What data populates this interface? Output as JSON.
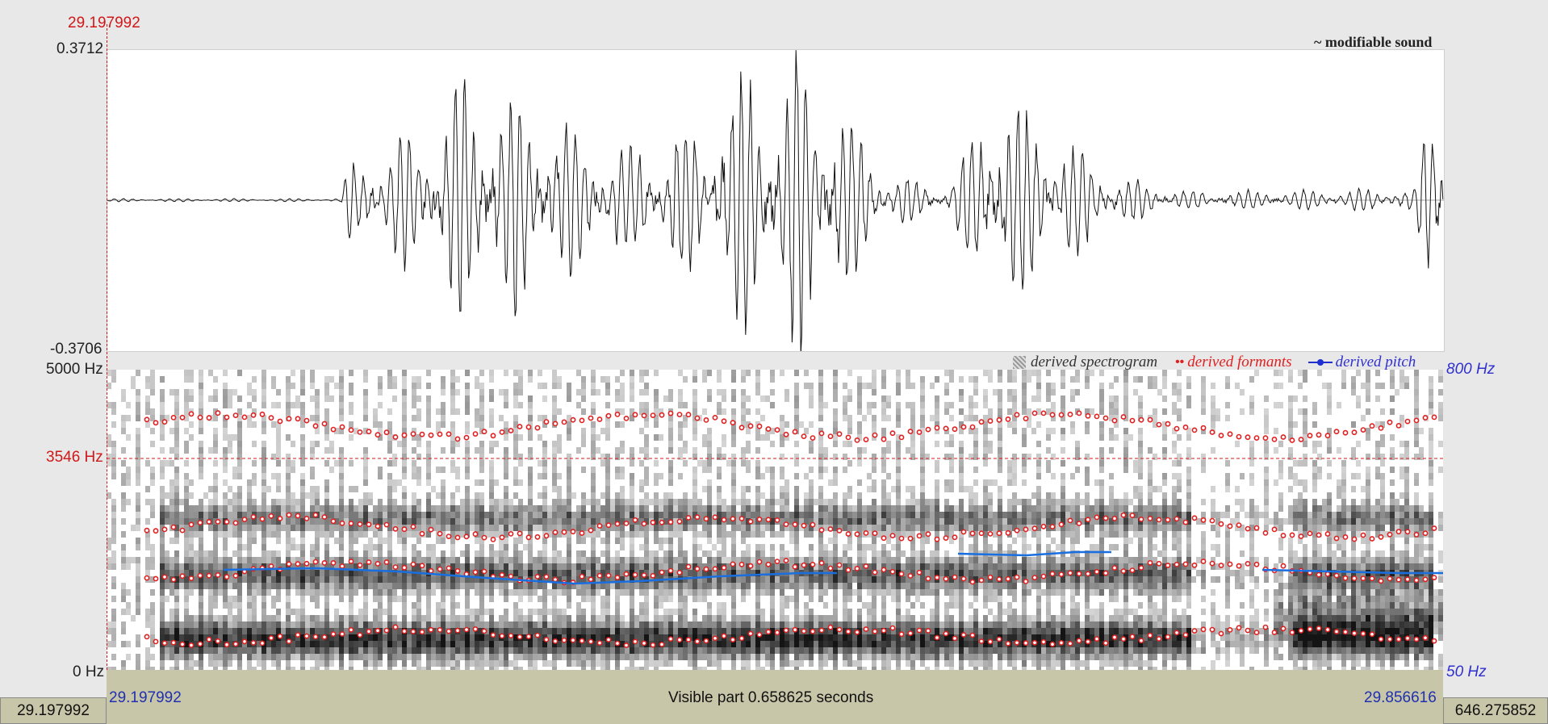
{
  "cursor": {
    "time_label": "29.197992"
  },
  "waveform": {
    "title": "~ modifiable sound",
    "y_max_label": "0.3712",
    "y_min_label": "-0.3706"
  },
  "spectrogram": {
    "freq_top_label": "5000 Hz",
    "freq_cursor_label": "3546 Hz",
    "freq_bottom_label": "0 Hz",
    "pitch_top_label": "800 Hz",
    "pitch_bottom_label": "50 Hz",
    "legend": {
      "spectrogram": "derived spectrogram",
      "formants": "derived formants",
      "pitch": "derived pitch"
    }
  },
  "bottom": {
    "left_time": "29.197992",
    "visible_part": "Visible part 0.658625 seconds",
    "right_time": "29.856616",
    "total_left": "29.197992",
    "total_right": "646.275852"
  },
  "colors": {
    "cursor": "#d01818",
    "formant": "#e02020",
    "pitch": "#1a6fe0",
    "bar": "#c8c6a8"
  }
}
